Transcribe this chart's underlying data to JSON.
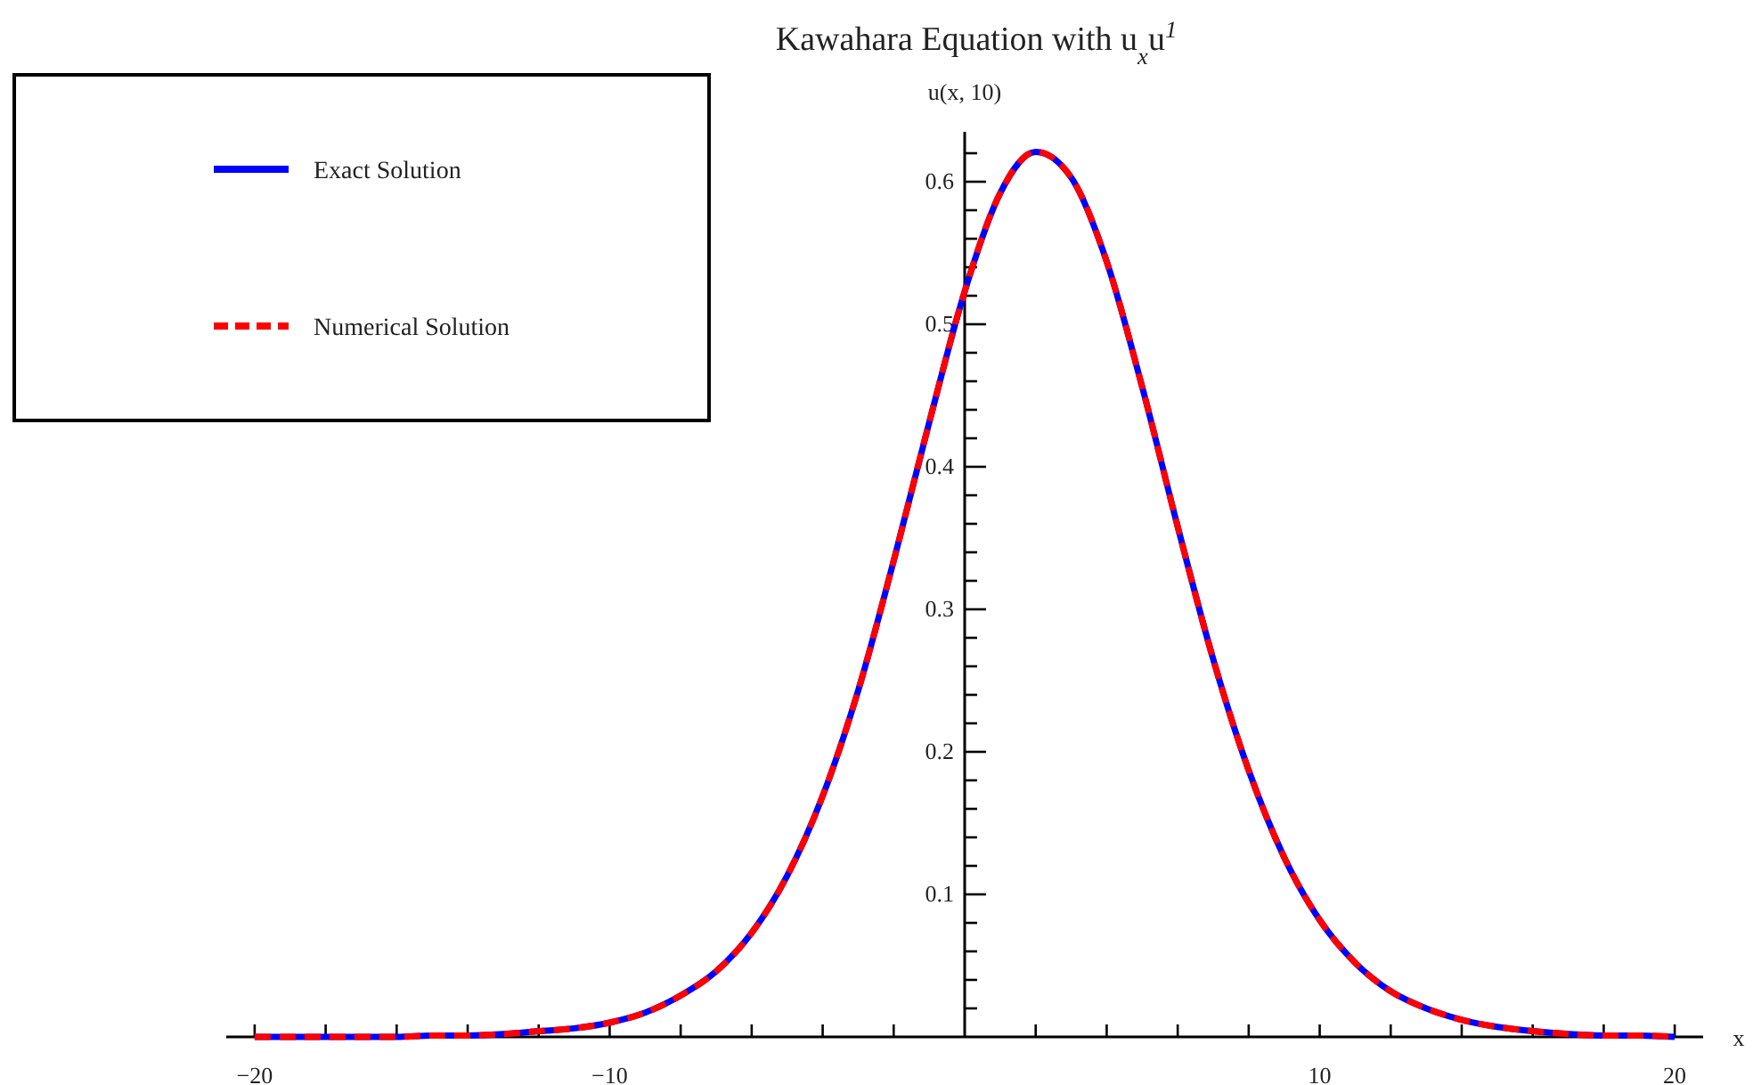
{
  "chart_data": {
    "type": "line",
    "title": "Kawahara Equation with u$_{x}$u$^{1}$",
    "xlabel": "x",
    "ylabel": "u(x, 10)",
    "x": [
      -20,
      -19,
      -18,
      -17,
      -16,
      -15,
      -14,
      -13,
      -12,
      -11,
      -10,
      -9,
      -8,
      -7,
      -6,
      -5,
      -4,
      -3,
      -2,
      -1,
      0,
      1,
      2,
      3,
      4,
      5,
      6,
      7,
      8,
      9,
      10,
      11,
      12,
      13,
      14,
      15,
      16,
      17,
      18,
      19,
      20
    ],
    "series": [
      {
        "name": "Exact Solution",
        "color": "#0000ff",
        "line_style": "solid",
        "values": [
          0.0,
          0.0,
          0.0,
          0.0,
          0.0,
          0.001,
          0.001,
          0.002,
          0.004,
          0.006,
          0.01,
          0.017,
          0.029,
          0.046,
          0.073,
          0.113,
          0.169,
          0.243,
          0.334,
          0.431,
          0.523,
          0.592,
          0.621,
          0.603,
          0.544,
          0.456,
          0.358,
          0.265,
          0.187,
          0.126,
          0.082,
          0.052,
          0.032,
          0.02,
          0.012,
          0.007,
          0.004,
          0.002,
          0.001,
          0.001,
          0.0
        ]
      },
      {
        "name": "Numerical Solution",
        "color": "#ff0000",
        "line_style": "dashed",
        "values": [
          0.0,
          0.0,
          0.0,
          0.0,
          0.0,
          0.001,
          0.001,
          0.002,
          0.004,
          0.006,
          0.01,
          0.017,
          0.029,
          0.046,
          0.073,
          0.113,
          0.169,
          0.243,
          0.334,
          0.431,
          0.523,
          0.592,
          0.621,
          0.603,
          0.544,
          0.456,
          0.358,
          0.265,
          0.187,
          0.126,
          0.082,
          0.052,
          0.032,
          0.02,
          0.012,
          0.007,
          0.004,
          0.002,
          0.001,
          0.001,
          0.0
        ]
      }
    ],
    "xlim": [
      -20.8,
      20.8
    ],
    "ylim": [
      0,
      0.635
    ],
    "xticks": [
      -20,
      {
        "value": -18,
        "label": null
      },
      {
        "value": -16,
        "label": null
      },
      {
        "value": -14,
        "label": null
      },
      {
        "value": -12,
        "label": null
      },
      -10,
      {
        "value": -8,
        "label": null
      },
      {
        "value": -6,
        "label": null
      },
      {
        "value": -4,
        "label": null
      },
      {
        "value": -2,
        "label": null
      },
      {
        "value": 2,
        "label": null
      },
      {
        "value": 4,
        "label": null
      },
      {
        "value": 6,
        "label": null
      },
      {
        "value": 8,
        "label": null
      },
      10,
      {
        "value": 12,
        "label": null
      },
      {
        "value": 14,
        "label": null
      },
      {
        "value": 16,
        "label": null
      },
      {
        "value": 18,
        "label": null
      },
      20
    ],
    "yticks": [
      {
        "value": 0.02,
        "label": null
      },
      {
        "value": 0.04,
        "label": null
      },
      {
        "value": 0.06,
        "label": null
      },
      {
        "value": 0.08,
        "label": null
      },
      0.1,
      {
        "value": 0.12,
        "label": null
      },
      {
        "value": 0.14,
        "label": null
      },
      {
        "value": 0.16,
        "label": null
      },
      {
        "value": 0.18,
        "label": null
      },
      0.2,
      {
        "value": 0.22,
        "label": null
      },
      {
        "value": 0.24,
        "label": null
      },
      {
        "value": 0.26,
        "label": null
      },
      {
        "value": 0.28,
        "label": null
      },
      0.3,
      {
        "value": 0.32,
        "label": null
      },
      {
        "value": 0.34,
        "label": null
      },
      {
        "value": 0.36,
        "label": null
      },
      {
        "value": 0.38,
        "label": null
      },
      0.4,
      {
        "value": 0.42,
        "label": null
      },
      {
        "value": 0.44,
        "label": null
      },
      {
        "value": 0.46,
        "label": null
      },
      {
        "value": 0.48,
        "label": null
      },
      0.5,
      {
        "value": 0.52,
        "label": null
      },
      {
        "value": 0.54,
        "label": null
      },
      {
        "value": 0.56,
        "label": null
      },
      {
        "value": 0.58,
        "label": null
      },
      0.6,
      {
        "value": 0.62,
        "label": null
      }
    ],
    "grid": false,
    "legend": "top left",
    "marker": "none"
  }
}
